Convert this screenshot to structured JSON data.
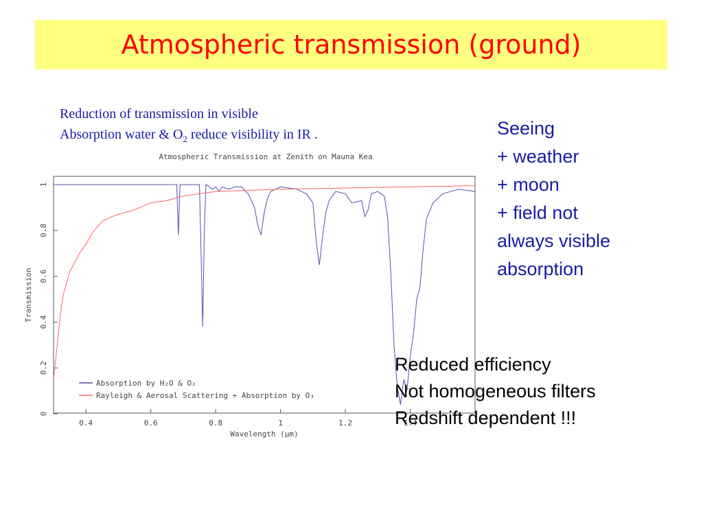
{
  "slide": {
    "title": "Atmospheric transmission (ground)",
    "caption": {
      "line1": "Reduction of  transmission in visible",
      "line2_before": "Absorption water & O",
      "line2_sub": "2",
      "line2_after": " reduce visibility in IR  ."
    },
    "notes_blue": [
      "Seeing",
      "+ weather",
      "+ moon",
      "+ field not",
      "always visible",
      "absorption"
    ],
    "notes_black": [
      "Reduced efficiency",
      "Not homogeneous filters",
      "Redshift dependent !!!"
    ]
  },
  "colors": {
    "title_bar": "#ffff80",
    "title_text": "#ff0000",
    "blue_text": "#1a1aa6",
    "absorption_line": "#5050b0",
    "scattering_line": "#ff6060"
  },
  "chart_data": {
    "type": "line",
    "title": "Atmospheric Transmission at Zenith on Mauna Kea",
    "xlabel": "Wavelength (μm)",
    "ylabel": "Transmission",
    "xlim": [
      0.3,
      1.6
    ],
    "ylim": [
      0,
      1
    ],
    "x_ticks": [
      "0.4",
      "0.6",
      "0.8",
      "1",
      "1.2",
      "1.4"
    ],
    "y_ticks": [
      "0",
      "0.2",
      "0.4",
      "0.6",
      "0.8",
      "1"
    ],
    "legend": [
      {
        "label": "Absorption by H₂O & O₂",
        "color": "#5050b0"
      },
      {
        "label": "Rayleigh & Aerosal Scattering + Absorption by O₃",
        "color": "#ff6060"
      }
    ],
    "legend_placement": "bottom-left",
    "series": [
      {
        "name": "Absorption by H₂O & O₂",
        "x": [
          0.3,
          0.68,
          0.685,
          0.69,
          0.75,
          0.755,
          0.76,
          0.765,
          0.77,
          0.79,
          0.8,
          0.81,
          0.82,
          0.84,
          0.86,
          0.88,
          0.9,
          0.92,
          0.93,
          0.94,
          0.95,
          0.96,
          0.97,
          1.0,
          1.05,
          1.08,
          1.1,
          1.11,
          1.12,
          1.13,
          1.14,
          1.15,
          1.16,
          1.17,
          1.2,
          1.22,
          1.25,
          1.26,
          1.27,
          1.28,
          1.3,
          1.32,
          1.33,
          1.34,
          1.35,
          1.36,
          1.37,
          1.38,
          1.39,
          1.4,
          1.41,
          1.42,
          1.43,
          1.44,
          1.45,
          1.47,
          1.5,
          1.55,
          1.6
        ],
        "values": [
          1.0,
          1.0,
          0.78,
          1.0,
          1.0,
          0.7,
          0.38,
          0.8,
          1.0,
          0.98,
          0.99,
          0.97,
          0.99,
          0.98,
          0.99,
          0.99,
          0.96,
          0.9,
          0.82,
          0.78,
          0.88,
          0.94,
          0.97,
          0.99,
          0.98,
          0.96,
          0.92,
          0.75,
          0.65,
          0.78,
          0.88,
          0.93,
          0.95,
          0.97,
          0.96,
          0.92,
          0.93,
          0.86,
          0.89,
          0.96,
          0.97,
          0.95,
          0.86,
          0.62,
          0.3,
          0.12,
          0.04,
          0.15,
          0.1,
          0.25,
          0.35,
          0.5,
          0.55,
          0.72,
          0.85,
          0.92,
          0.96,
          0.98,
          0.97
        ]
      },
      {
        "name": "Rayleigh & Aerosal Scattering + Absorption by O₃",
        "x": [
          0.3,
          0.31,
          0.32,
          0.33,
          0.35,
          0.38,
          0.4,
          0.42,
          0.45,
          0.48,
          0.5,
          0.55,
          0.6,
          0.65,
          0.7,
          0.75,
          0.8,
          0.9,
          1.0,
          1.2,
          1.4,
          1.6
        ],
        "values": [
          0.15,
          0.28,
          0.42,
          0.52,
          0.62,
          0.7,
          0.74,
          0.79,
          0.84,
          0.86,
          0.87,
          0.89,
          0.92,
          0.93,
          0.95,
          0.96,
          0.97,
          0.975,
          0.98,
          0.985,
          0.99,
          0.995
        ]
      }
    ]
  }
}
